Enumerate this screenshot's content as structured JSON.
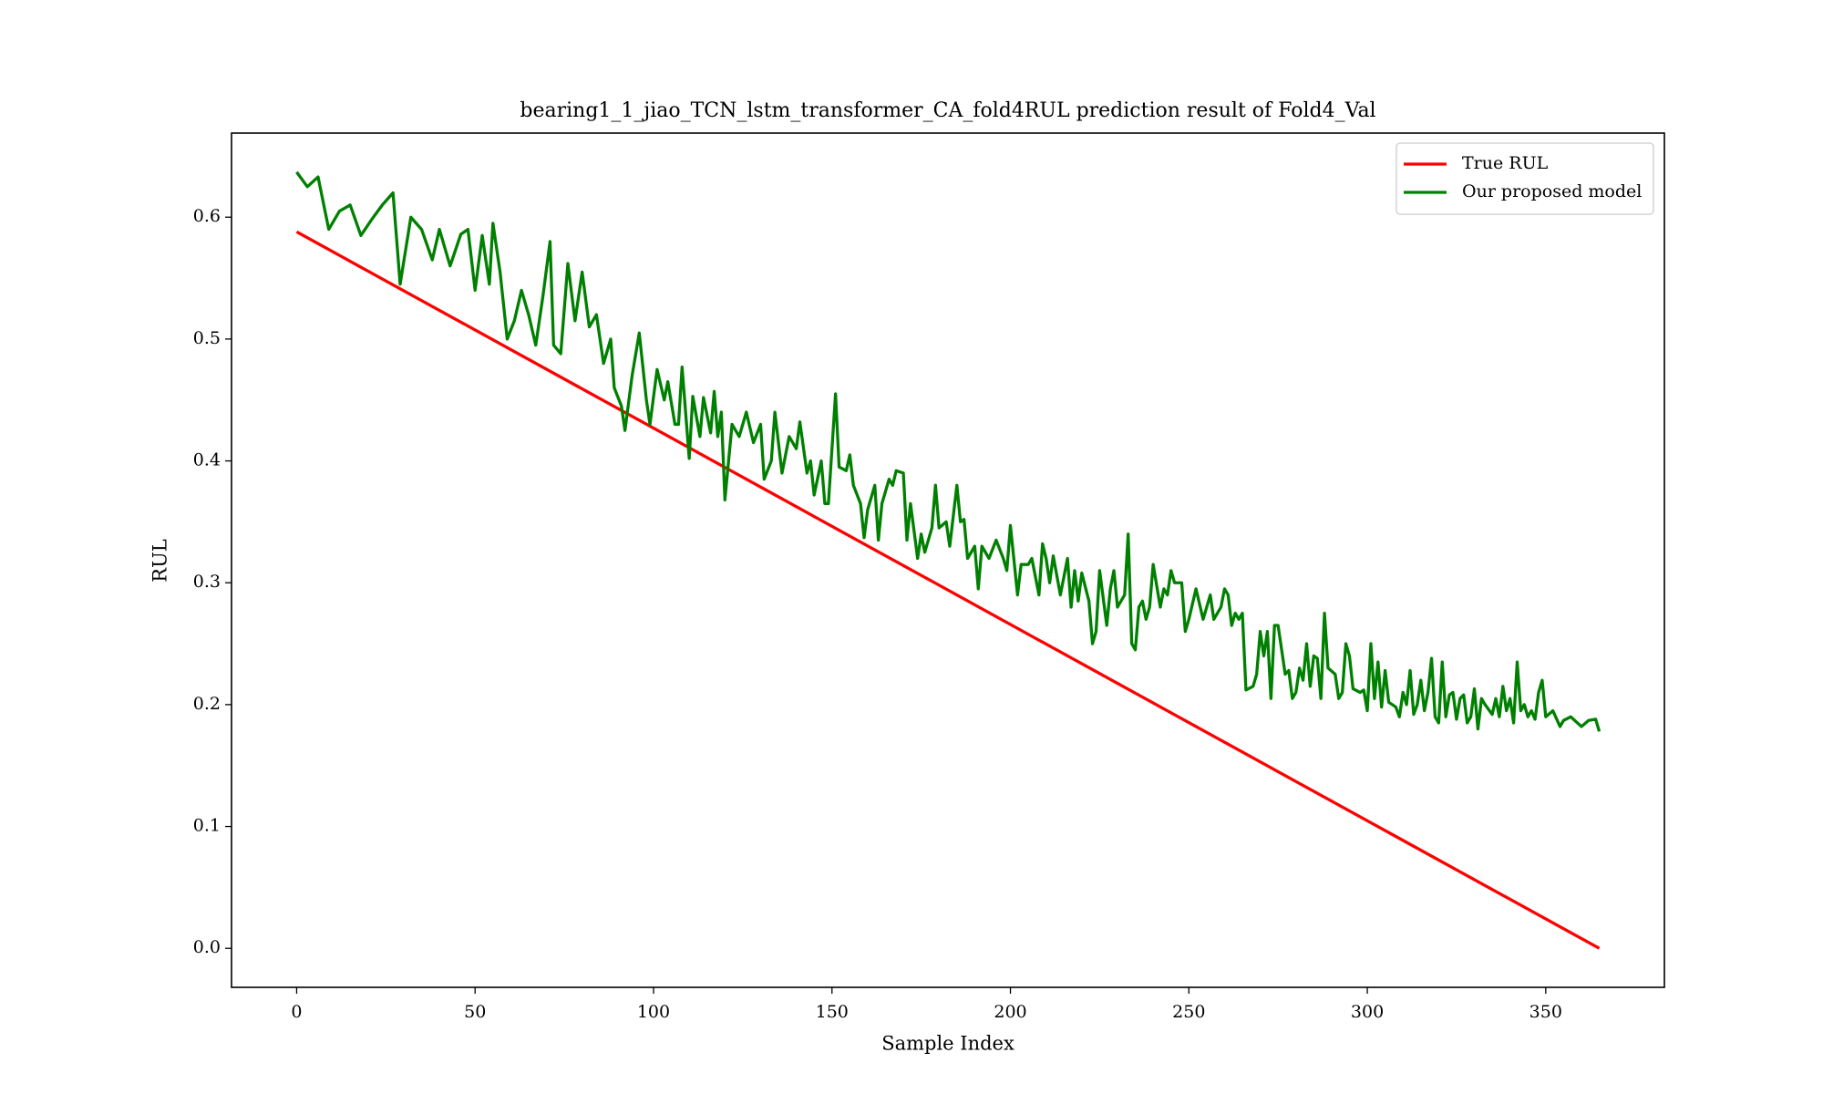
{
  "chart_data": {
    "type": "line",
    "title": "bearing1_1_jiao_TCN_lstm_transformer_CA_fold4RUL prediction result of Fold4_Val",
    "x_label": "Sample Index",
    "y_label": "RUL",
    "xlim": [
      -18.25,
      383.25
    ],
    "ylim": [
      -0.032,
      0.669
    ],
    "xticks": [
      0,
      50,
      100,
      150,
      200,
      250,
      300,
      350
    ],
    "yticks": [
      {
        "value": 0,
        "label": "0.0"
      },
      0.1,
      0.2,
      0.3,
      0.4,
      0.5,
      0.6
    ],
    "legend": "upper right",
    "series": [
      {
        "name": "True RUL",
        "color": "#ff0000",
        "x": [
          0,
          365
        ],
        "values": [
          0.588,
          0
        ]
      },
      {
        "name": "Our proposed model",
        "color": "#008000",
        "x": [
          0,
          3,
          6,
          9,
          12,
          15,
          18,
          21,
          24,
          27,
          29,
          32,
          35,
          38,
          40,
          43,
          46,
          48,
          50,
          52,
          54,
          55,
          57,
          59,
          61,
          63,
          65,
          67,
          69,
          71,
          72,
          74,
          76,
          78,
          80,
          82,
          84,
          86,
          88,
          89,
          91,
          92,
          94,
          96,
          98,
          99,
          101,
          103,
          104,
          106,
          107,
          108,
          110,
          111,
          113,
          114,
          116,
          117,
          118,
          119,
          120,
          122,
          124,
          126,
          128,
          130,
          131,
          133,
          134,
          136,
          138,
          140,
          141,
          143,
          144,
          145,
          147,
          148,
          149,
          151,
          152,
          154,
          155,
          156,
          158,
          159,
          160,
          162,
          163,
          164,
          166,
          167,
          168,
          170,
          171,
          172,
          174,
          175,
          176,
          178,
          179,
          180,
          182,
          183,
          185,
          186,
          187,
          188,
          190,
          191,
          192,
          194,
          196,
          198,
          199,
          200,
          202,
          203,
          205,
          206,
          208,
          209,
          210,
          211,
          212,
          214,
          216,
          217,
          218,
          219,
          220,
          222,
          223,
          224,
          225,
          227,
          228,
          229,
          230,
          232,
          233,
          234,
          235,
          236,
          237,
          238,
          239,
          240,
          242,
          243,
          244,
          245,
          246,
          248,
          249,
          250,
          252,
          254,
          256,
          257,
          259,
          260,
          261,
          262,
          263,
          264,
          265,
          266,
          268,
          269,
          270,
          271,
          272,
          273,
          274,
          275,
          277,
          278,
          279,
          280,
          281,
          282,
          283,
          284,
          285,
          286,
          287,
          288,
          289,
          291,
          292,
          293,
          294,
          295,
          296,
          298,
          299,
          300,
          301,
          302,
          303,
          304,
          305,
          306,
          308,
          309,
          310,
          311,
          312,
          313,
          314,
          315,
          316,
          317,
          318,
          319,
          320,
          321,
          322,
          323,
          324,
          325,
          326,
          327,
          328,
          329,
          330,
          331,
          332,
          333,
          335,
          336,
          337,
          338,
          339,
          340,
          341,
          342,
          343,
          344,
          345,
          346,
          347,
          348,
          349,
          350,
          352,
          354,
          355,
          357,
          360,
          362,
          364,
          365
        ],
        "values": [
          0.637,
          0.625,
          0.633,
          0.59,
          0.605,
          0.61,
          0.585,
          0.598,
          0.61,
          0.62,
          0.545,
          0.6,
          0.59,
          0.565,
          0.59,
          0.56,
          0.586,
          0.59,
          0.54,
          0.585,
          0.545,
          0.595,
          0.555,
          0.5,
          0.515,
          0.54,
          0.52,
          0.495,
          0.535,
          0.58,
          0.495,
          0.488,
          0.562,
          0.515,
          0.555,
          0.51,
          0.52,
          0.48,
          0.5,
          0.46,
          0.445,
          0.425,
          0.47,
          0.505,
          0.45,
          0.43,
          0.475,
          0.45,
          0.465,
          0.43,
          0.43,
          0.477,
          0.402,
          0.453,
          0.42,
          0.452,
          0.423,
          0.457,
          0.42,
          0.44,
          0.368,
          0.43,
          0.42,
          0.44,
          0.415,
          0.43,
          0.385,
          0.4,
          0.44,
          0.39,
          0.42,
          0.41,
          0.432,
          0.39,
          0.4,
          0.372,
          0.4,
          0.365,
          0.365,
          0.455,
          0.395,
          0.392,
          0.405,
          0.38,
          0.365,
          0.337,
          0.36,
          0.38,
          0.335,
          0.365,
          0.385,
          0.38,
          0.392,
          0.39,
          0.335,
          0.365,
          0.32,
          0.34,
          0.325,
          0.345,
          0.38,
          0.345,
          0.35,
          0.33,
          0.38,
          0.35,
          0.352,
          0.32,
          0.33,
          0.295,
          0.33,
          0.32,
          0.335,
          0.32,
          0.31,
          0.347,
          0.29,
          0.315,
          0.315,
          0.32,
          0.29,
          0.332,
          0.32,
          0.3,
          0.322,
          0.29,
          0.32,
          0.28,
          0.31,
          0.285,
          0.308,
          0.285,
          0.25,
          0.26,
          0.31,
          0.265,
          0.295,
          0.31,
          0.28,
          0.29,
          0.34,
          0.25,
          0.245,
          0.28,
          0.285,
          0.27,
          0.28,
          0.315,
          0.28,
          0.295,
          0.29,
          0.31,
          0.3,
          0.3,
          0.26,
          0.27,
          0.295,
          0.27,
          0.29,
          0.27,
          0.28,
          0.295,
          0.29,
          0.265,
          0.275,
          0.27,
          0.275,
          0.212,
          0.215,
          0.225,
          0.26,
          0.24,
          0.26,
          0.205,
          0.265,
          0.265,
          0.225,
          0.228,
          0.205,
          0.21,
          0.23,
          0.22,
          0.25,
          0.215,
          0.24,
          0.238,
          0.205,
          0.275,
          0.23,
          0.225,
          0.205,
          0.21,
          0.25,
          0.24,
          0.213,
          0.21,
          0.212,
          0.195,
          0.25,
          0.205,
          0.235,
          0.198,
          0.228,
          0.202,
          0.198,
          0.19,
          0.21,
          0.2,
          0.228,
          0.192,
          0.2,
          0.22,
          0.195,
          0.21,
          0.238,
          0.19,
          0.185,
          0.235,
          0.19,
          0.208,
          0.21,
          0.188,
          0.205,
          0.208,
          0.185,
          0.19,
          0.213,
          0.18,
          0.205,
          0.2,
          0.192,
          0.205,
          0.19,
          0.215,
          0.195,
          0.205,
          0.185,
          0.235,
          0.195,
          0.2,
          0.19,
          0.195,
          0.188,
          0.21,
          0.22,
          0.19,
          0.195,
          0.182,
          0.187,
          0.19,
          0.182,
          0.187,
          0.188,
          0.178
        ]
      }
    ]
  }
}
